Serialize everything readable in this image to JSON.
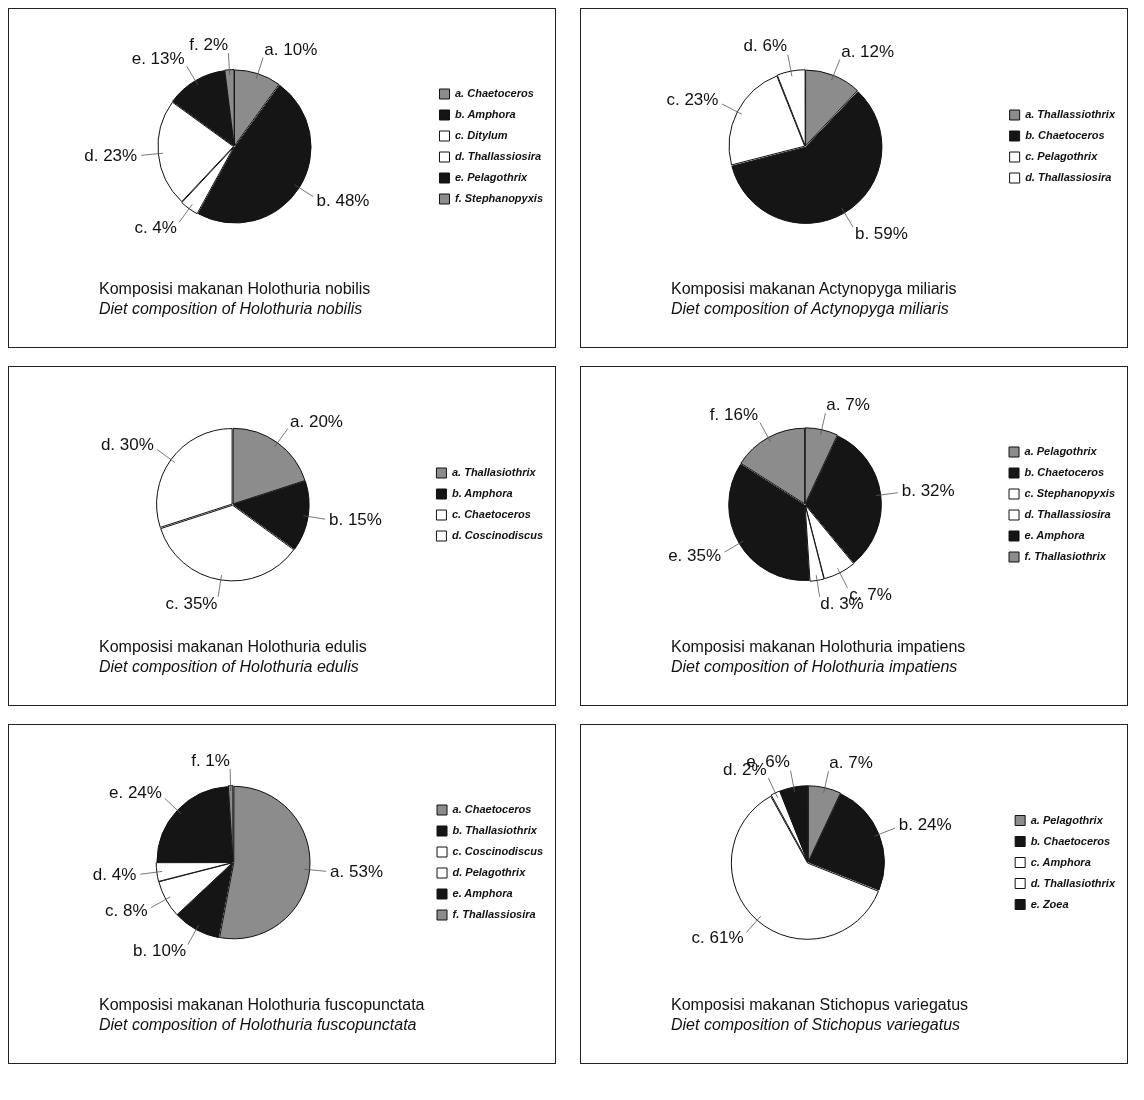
{
  "chart_data": [
    {
      "type": "pie",
      "title": "Komposisi makanan Holothuria nobilis",
      "subtitle": "Diet composition of Holothuria nobilis",
      "legend": "right",
      "categories": [
        "a. Chaetoceros",
        "b. Amphora",
        "c. Ditylum",
        "d. Thallassiosira",
        "e. Pelagothrix",
        "f. Stephanopyxis"
      ],
      "values": [
        10,
        48,
        4,
        23,
        13,
        2
      ],
      "value_labels": [
        "a. 10%",
        "b. 48%",
        "c. 4%",
        "d. 23%",
        "e. 13%",
        "f. 2%"
      ],
      "colors": [
        "#8c8c8c",
        "#151515",
        "#ffffff",
        "#ffffff",
        "#151515",
        "#8c8c8c"
      ]
    },
    {
      "type": "pie",
      "title": "Komposisi makanan Actynopyga miliaris",
      "subtitle": "Diet composition of Actynopyga miliaris",
      "legend": "right",
      "categories": [
        "a. Thallassiothrix",
        "b. Chaetoceros",
        "c. Pelagothrix",
        "d. Thallassiosira"
      ],
      "values": [
        12,
        59,
        23,
        6
      ],
      "value_labels": [
        "a. 12%",
        "b. 59%",
        "c. 23%",
        "d. 6%"
      ],
      "colors": [
        "#8c8c8c",
        "#151515",
        "#ffffff",
        "#ffffff"
      ]
    },
    {
      "type": "pie",
      "title": "Komposisi makanan Holothuria edulis",
      "subtitle": "Diet composition of Holothuria edulis",
      "legend": "right",
      "categories": [
        "a. Thallasiothrix",
        "b. Amphora",
        "c. Chaetoceros",
        "d. Coscinodiscus"
      ],
      "values": [
        20,
        15,
        35,
        30
      ],
      "value_labels": [
        "a. 20%",
        "b. 15%",
        "c. 35%",
        "d. 30%"
      ],
      "colors": [
        "#8c8c8c",
        "#151515",
        "#ffffff",
        "#ffffff"
      ]
    },
    {
      "type": "pie",
      "title": "Komposisi makanan Holothuria impatiens",
      "subtitle": "Diet composition of Holothuria impatiens",
      "legend": "right",
      "categories": [
        "a. Pelagothrix",
        "b. Chaetoceros",
        "c. Stephanopyxis",
        "d. Thallassiosira",
        "e. Amphora",
        "f. Thallasiothrix"
      ],
      "values": [
        7,
        32,
        7,
        3,
        35,
        16
      ],
      "value_labels": [
        "a. 7%",
        "b. 32%",
        "c. 7%",
        "d. 3%",
        "e. 35%",
        "f. 16%"
      ],
      "colors": [
        "#8c8c8c",
        "#151515",
        "#ffffff",
        "#ffffff",
        "#151515",
        "#8c8c8c"
      ]
    },
    {
      "type": "pie",
      "title": "Komposisi makanan Holothuria fuscopunctata",
      "subtitle": "Diet composition of Holothuria fuscopunctata",
      "legend": "right",
      "categories": [
        "a. Chaetoceros",
        "b. Thallasiothrix",
        "c. Coscinodiscus",
        "d. Pelagothrix",
        "e. Amphora",
        "f. Thallassiosira"
      ],
      "values": [
        53,
        10,
        8,
        4,
        24,
        1
      ],
      "value_labels": [
        "a. 53%",
        "b. 10%",
        "c. 8%",
        "d. 4%",
        "e. 24%",
        "f. 1%"
      ],
      "colors": [
        "#8c8c8c",
        "#151515",
        "#ffffff",
        "#ffffff",
        "#151515",
        "#8c8c8c"
      ]
    },
    {
      "type": "pie",
      "title": "Komposisi makanan Stichopus variegatus",
      "subtitle": "Diet composition of Stichopus variegatus",
      "legend": "right",
      "categories": [
        "a. Pelagothrix",
        "b. Chaetoceros",
        "c. Amphora",
        "d. Thallasiothrix",
        "e. Zoea"
      ],
      "values": [
        7,
        24,
        61,
        2,
        6
      ],
      "value_labels": [
        "a. 7%",
        "b. 24%",
        "c. 61%",
        "d. 2%",
        "e. 6%"
      ],
      "colors": [
        "#8c8c8c",
        "#151515",
        "#ffffff",
        "#ffffff",
        "#151515"
      ]
    }
  ]
}
